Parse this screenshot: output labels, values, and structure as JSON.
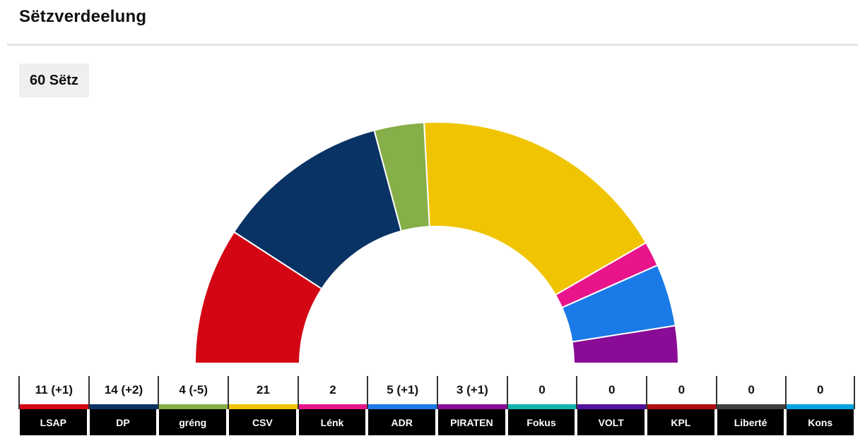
{
  "header": {
    "title": "Sëtzverdeelung",
    "total_badge": "60 Sëtz"
  },
  "chart_data": {
    "type": "pie",
    "variant": "half-donut",
    "title": "Sëtzverdeelung",
    "total_seats": 60,
    "total_label": "60 Sëtz",
    "start_angle_deg": 180,
    "end_angle_deg": 0,
    "inner_radius_ratio": 0.567,
    "segment_stroke_color": "#ffffff",
    "legend_position": "bottom-table",
    "categories": [
      "LSAP",
      "DP",
      "gréng",
      "CSV",
      "Lénk",
      "ADR",
      "PIRATEN",
      "Fokus",
      "VOLT",
      "KPL",
      "Liberté",
      "Kons"
    ],
    "values": [
      11,
      14,
      4,
      21,
      2,
      5,
      3,
      0,
      0,
      0,
      0,
      0
    ],
    "parties": [
      {
        "name": "LSAP",
        "seats": 11,
        "change": "+1",
        "display_value": "11 (+1)",
        "color": "#d40613"
      },
      {
        "name": "DP",
        "seats": 14,
        "change": "+2",
        "display_value": "14 (+2)",
        "color": "#0a3365"
      },
      {
        "name": "gréng",
        "seats": 4,
        "change": "-5",
        "display_value": "4 (-5)",
        "color": "#86ae49"
      },
      {
        "name": "CSV",
        "seats": 21,
        "change": "",
        "display_value": "21",
        "color": "#f0c400"
      },
      {
        "name": "Lénk",
        "seats": 2,
        "change": "",
        "display_value": "2",
        "color": "#e8148c"
      },
      {
        "name": "ADR",
        "seats": 5,
        "change": "+1",
        "display_value": "5 (+1)",
        "color": "#1a7ae8"
      },
      {
        "name": "PIRATEN",
        "seats": 3,
        "change": "+1",
        "display_value": "3 (+1)",
        "color": "#8a0b96"
      },
      {
        "name": "Fokus",
        "seats": 0,
        "change": "",
        "display_value": "0",
        "color": "#12b5ad"
      },
      {
        "name": "VOLT",
        "seats": 0,
        "change": "",
        "display_value": "0",
        "color": "#5412a0"
      },
      {
        "name": "KPL",
        "seats": 0,
        "change": "",
        "display_value": "0",
        "color": "#b00d12"
      },
      {
        "name": "Liberté",
        "seats": 0,
        "change": "",
        "display_value": "0",
        "color": "#3f3f3f"
      },
      {
        "name": "Kons",
        "seats": 0,
        "change": "",
        "display_value": "0",
        "color": "#00a3e2"
      }
    ]
  }
}
